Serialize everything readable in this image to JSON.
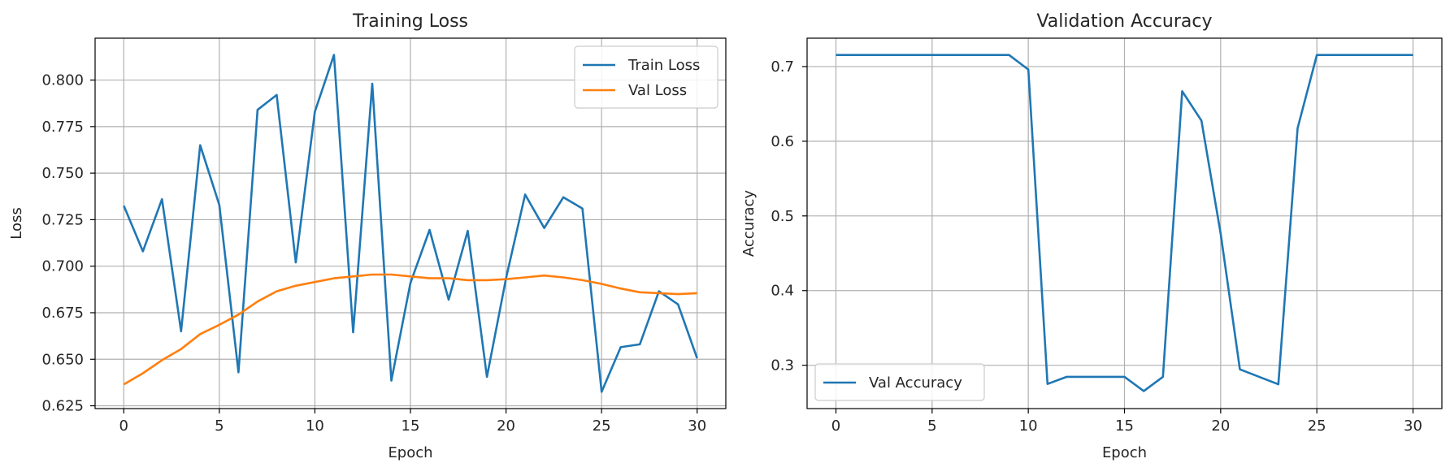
{
  "chart_data": [
    {
      "type": "line",
      "title": "Training Loss",
      "xlabel": "Epoch",
      "ylabel": "Loss",
      "xlim": [
        -1.5,
        31.5
      ],
      "ylim": [
        0.6235,
        0.8225
      ],
      "xticks": [
        0,
        5,
        10,
        15,
        20,
        25,
        30
      ],
      "yticks": [
        0.625,
        0.65,
        0.675,
        0.7,
        0.725,
        0.75,
        0.775,
        0.8
      ],
      "ytick_labels": [
        "0.625",
        "0.650",
        "0.675",
        "0.700",
        "0.725",
        "0.750",
        "0.775",
        "0.800"
      ],
      "grid": true,
      "legend": "upper right",
      "x": [
        0,
        1,
        2,
        3,
        4,
        5,
        6,
        7,
        8,
        9,
        10,
        11,
        12,
        13,
        14,
        15,
        16,
        17,
        18,
        19,
        20,
        21,
        22,
        23,
        24,
        25,
        26,
        27,
        28,
        29,
        30
      ],
      "series": [
        {
          "name": "Train Loss",
          "color": "#1f77b4",
          "values": [
            0.7325,
            0.708,
            0.736,
            0.665,
            0.765,
            0.733,
            0.643,
            0.784,
            0.792,
            0.702,
            0.783,
            0.8135,
            0.6645,
            0.798,
            0.6385,
            0.691,
            0.7195,
            0.682,
            0.719,
            0.6405,
            0.6935,
            0.7385,
            0.7205,
            0.737,
            0.731,
            0.6325,
            0.6565,
            0.658,
            0.6865,
            0.6795,
            0.6505
          ]
        },
        {
          "name": "Val Loss",
          "color": "#ff7f0e",
          "values": [
            0.6365,
            0.6425,
            0.6495,
            0.6555,
            0.6635,
            0.6685,
            0.674,
            0.681,
            0.6865,
            0.6895,
            0.6915,
            0.6935,
            0.6945,
            0.6955,
            0.6955,
            0.6945,
            0.6935,
            0.6935,
            0.6925,
            0.6925,
            0.693,
            0.694,
            0.695,
            0.694,
            0.6925,
            0.6905,
            0.688,
            0.686,
            0.6855,
            0.685,
            0.6855
          ]
        }
      ]
    },
    {
      "type": "line",
      "title": "Validation Accuracy",
      "xlabel": "Epoch",
      "ylabel": "Accuracy",
      "xlim": [
        -1.5,
        31.5
      ],
      "ylim": [
        0.242,
        0.738
      ],
      "xticks": [
        0,
        5,
        10,
        15,
        20,
        25,
        30
      ],
      "yticks": [
        0.3,
        0.4,
        0.5,
        0.6,
        0.7
      ],
      "ytick_labels": [
        "0.3",
        "0.4",
        "0.5",
        "0.6",
        "0.7"
      ],
      "grid": true,
      "legend": "lower left",
      "x": [
        0,
        1,
        2,
        3,
        4,
        5,
        6,
        7,
        8,
        9,
        10,
        11,
        12,
        13,
        14,
        15,
        16,
        17,
        18,
        19,
        20,
        21,
        22,
        23,
        24,
        25,
        26,
        27,
        28,
        29,
        30
      ],
      "series": [
        {
          "name": "Val Accuracy",
          "color": "#1f77b4",
          "values": [
            0.7155,
            0.7155,
            0.7155,
            0.7155,
            0.7155,
            0.7155,
            0.7155,
            0.7155,
            0.7155,
            0.7155,
            0.696,
            0.275,
            0.2845,
            0.2845,
            0.2845,
            0.2845,
            0.2655,
            0.2845,
            0.667,
            0.6275,
            0.4765,
            0.2945,
            0.2845,
            0.2745,
            0.6175,
            0.7155,
            0.7155,
            0.7155,
            0.7155,
            0.7155,
            0.7155
          ]
        }
      ]
    }
  ]
}
